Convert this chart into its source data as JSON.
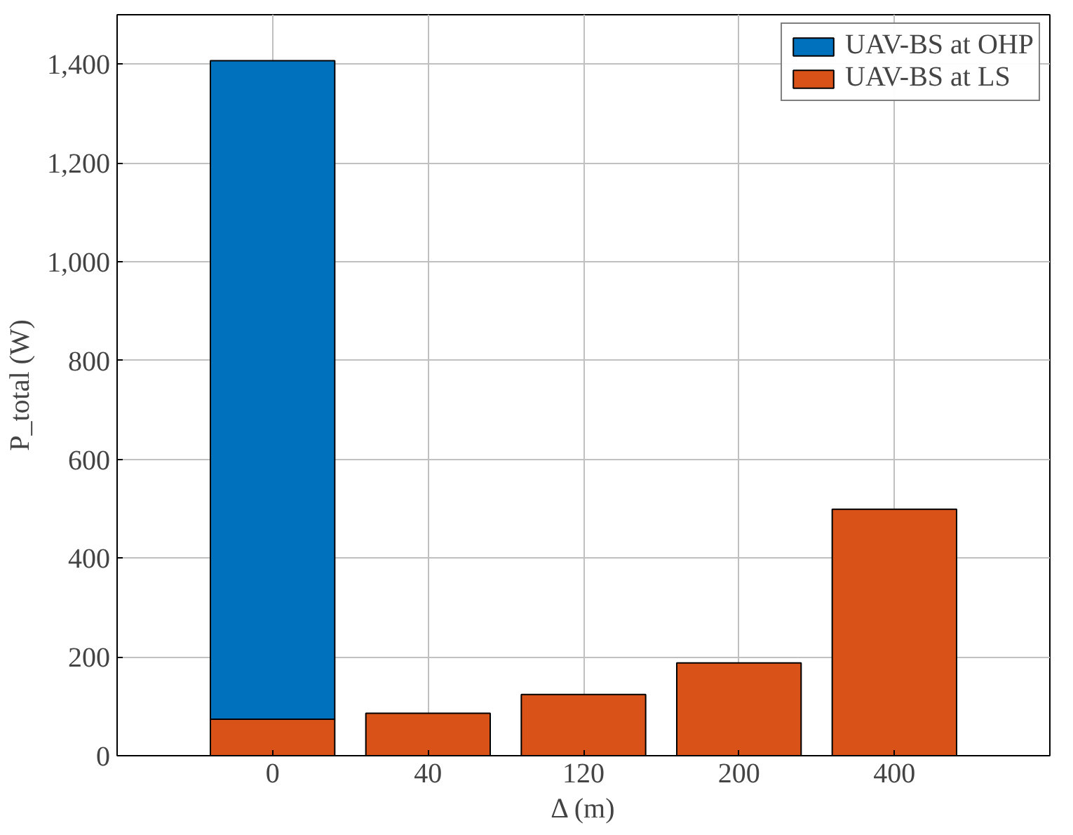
{
  "chart_data": {
    "type": "bar",
    "stacked": true,
    "xlabel": "Δ (m)",
    "ylabel": "P_total (W)",
    "categories": [
      "0",
      "40",
      "120",
      "200",
      "400"
    ],
    "series": [
      {
        "name": "UAV-BS at LS",
        "color": "#d95319",
        "values": [
          74,
          86,
          124,
          188,
          499
        ]
      },
      {
        "name": "UAV-BS at OHP",
        "color": "#0072bd",
        "values": [
          1333,
          null,
          null,
          null,
          null
        ]
      }
    ],
    "ylim": [
      0,
      1500
    ],
    "yticks": [
      0,
      200,
      400,
      600,
      800,
      {
        "value": 1000,
        "label": "1,000"
      },
      {
        "value": 1200,
        "label": "1,200"
      },
      {
        "value": 1400,
        "label": "1,400"
      }
    ],
    "grid": true,
    "legend": "top right"
  }
}
